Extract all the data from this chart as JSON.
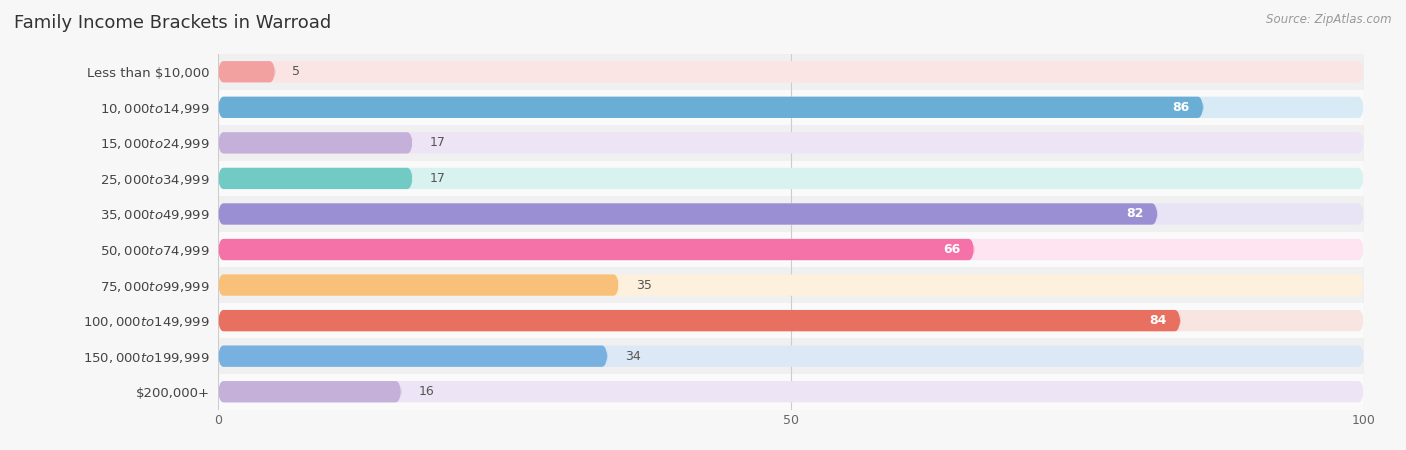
{
  "title": "Family Income Brackets in Warroad",
  "source": "Source: ZipAtlas.com",
  "categories": [
    "Less than $10,000",
    "$10,000 to $14,999",
    "$15,000 to $24,999",
    "$25,000 to $34,999",
    "$35,000 to $49,999",
    "$50,000 to $74,999",
    "$75,000 to $99,999",
    "$100,000 to $149,999",
    "$150,000 to $199,999",
    "$200,000+"
  ],
  "values": [
    5,
    86,
    17,
    17,
    82,
    66,
    35,
    84,
    34,
    16
  ],
  "bar_colors": [
    "#f2a0a0",
    "#6aaed6",
    "#c4b0d8",
    "#72cac4",
    "#9b8fd4",
    "#f472a8",
    "#f9c07a",
    "#e87060",
    "#78b0e0",
    "#c4b0d8"
  ],
  "bar_bg_colors": [
    "#fae4e4",
    "#d8eaf5",
    "#ede4f5",
    "#d8f2f0",
    "#e8e4f5",
    "#fde4f0",
    "#fdf0dc",
    "#f8e4e0",
    "#dce8f5",
    "#ede4f5"
  ],
  "xlim": [
    0,
    100
  ],
  "xticks": [
    0,
    50,
    100
  ],
  "background_color": "#f7f7f7",
  "row_bg_colors": [
    "#f0f0f0",
    "#fafafa"
  ],
  "bar_height": 0.6,
  "title_fontsize": 13,
  "label_fontsize": 9.5,
  "value_fontsize": 9,
  "source_fontsize": 8.5
}
